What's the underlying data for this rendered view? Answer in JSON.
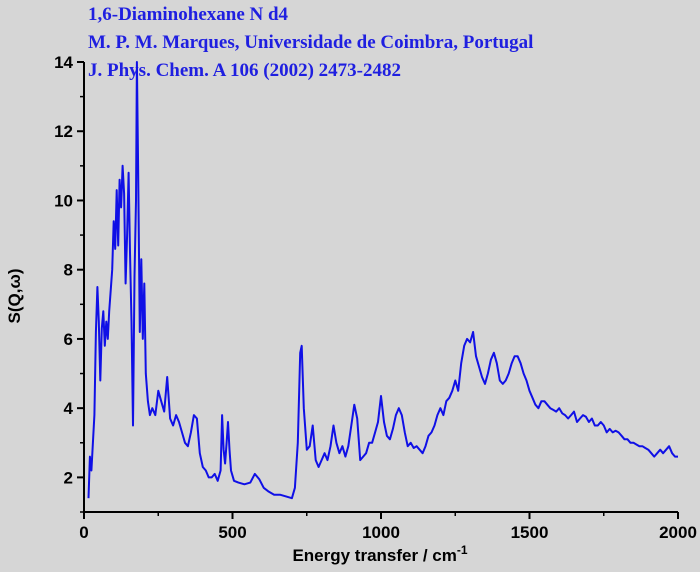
{
  "chart_data": {
    "type": "line",
    "title_lines": [
      "1,6-Diaminohexane N d4",
      "M. P. M. Marques, Universidade de Coimbra, Portugal",
      "J. Phys. Chem. A 106 (2002) 2473-2482"
    ],
    "xlabel": "Energy transfer / cm",
    "xlabel_sup": "-1",
    "ylabel": "S(Q,ω)",
    "xlim": [
      0,
      2000
    ],
    "ylim": [
      1,
      14
    ],
    "xticks": [
      0,
      500,
      1000,
      1500,
      2000
    ],
    "yticks": [
      2,
      4,
      6,
      8,
      10,
      12,
      14
    ],
    "grid": false,
    "legend": "none",
    "colors": {
      "line": "#1010e6",
      "title": "#1f1fe0",
      "background": "#d6d6d6",
      "axis": "#000000"
    },
    "series": [
      {
        "points": [
          [
            15,
            1.4
          ],
          [
            20,
            2.6
          ],
          [
            25,
            2.2
          ],
          [
            30,
            3.0
          ],
          [
            35,
            3.8
          ],
          [
            40,
            6.2
          ],
          [
            45,
            7.5
          ],
          [
            50,
            6.5
          ],
          [
            55,
            4.8
          ],
          [
            60,
            6.3
          ],
          [
            65,
            6.8
          ],
          [
            70,
            5.8
          ],
          [
            75,
            6.5
          ],
          [
            80,
            6.0
          ],
          [
            85,
            6.8
          ],
          [
            90,
            7.4
          ],
          [
            95,
            8.0
          ],
          [
            100,
            9.4
          ],
          [
            105,
            8.6
          ],
          [
            110,
            10.3
          ],
          [
            115,
            8.7
          ],
          [
            120,
            10.6
          ],
          [
            125,
            9.8
          ],
          [
            130,
            11.0
          ],
          [
            135,
            10.2
          ],
          [
            140,
            7.6
          ],
          [
            145,
            9.0
          ],
          [
            150,
            10.8
          ],
          [
            155,
            8.5
          ],
          [
            160,
            6.5
          ],
          [
            165,
            3.5
          ],
          [
            170,
            7.8
          ],
          [
            175,
            10.0
          ],
          [
            178,
            14.0
          ],
          [
            182,
            11.0
          ],
          [
            188,
            6.2
          ],
          [
            193,
            8.3
          ],
          [
            198,
            6.0
          ],
          [
            203,
            7.6
          ],
          [
            208,
            5.0
          ],
          [
            215,
            4.2
          ],
          [
            222,
            3.8
          ],
          [
            230,
            4.0
          ],
          [
            240,
            3.8
          ],
          [
            250,
            4.5
          ],
          [
            260,
            4.2
          ],
          [
            270,
            3.9
          ],
          [
            280,
            4.9
          ],
          [
            290,
            3.7
          ],
          [
            300,
            3.5
          ],
          [
            310,
            3.8
          ],
          [
            320,
            3.6
          ],
          [
            330,
            3.3
          ],
          [
            340,
            3.0
          ],
          [
            350,
            2.9
          ],
          [
            360,
            3.3
          ],
          [
            370,
            3.8
          ],
          [
            380,
            3.7
          ],
          [
            390,
            2.7
          ],
          [
            400,
            2.3
          ],
          [
            410,
            2.2
          ],
          [
            420,
            2.0
          ],
          [
            430,
            2.0
          ],
          [
            440,
            2.1
          ],
          [
            450,
            1.9
          ],
          [
            460,
            2.2
          ],
          [
            465,
            3.8
          ],
          [
            470,
            2.8
          ],
          [
            475,
            2.4
          ],
          [
            480,
            3.0
          ],
          [
            485,
            3.6
          ],
          [
            490,
            2.8
          ],
          [
            495,
            2.2
          ],
          [
            505,
            1.9
          ],
          [
            520,
            1.85
          ],
          [
            540,
            1.8
          ],
          [
            560,
            1.85
          ],
          [
            575,
            2.1
          ],
          [
            590,
            1.95
          ],
          [
            605,
            1.7
          ],
          [
            620,
            1.6
          ],
          [
            640,
            1.5
          ],
          [
            660,
            1.5
          ],
          [
            680,
            1.45
          ],
          [
            700,
            1.4
          ],
          [
            710,
            1.7
          ],
          [
            720,
            3.0
          ],
          [
            728,
            5.6
          ],
          [
            733,
            5.8
          ],
          [
            740,
            4.0
          ],
          [
            750,
            2.8
          ],
          [
            760,
            2.9
          ],
          [
            770,
            3.5
          ],
          [
            780,
            2.5
          ],
          [
            790,
            2.3
          ],
          [
            800,
            2.5
          ],
          [
            810,
            2.7
          ],
          [
            820,
            2.5
          ],
          [
            830,
            2.9
          ],
          [
            840,
            3.5
          ],
          [
            850,
            3.0
          ],
          [
            860,
            2.7
          ],
          [
            870,
            2.9
          ],
          [
            880,
            2.6
          ],
          [
            890,
            2.9
          ],
          [
            900,
            3.5
          ],
          [
            910,
            4.1
          ],
          [
            920,
            3.7
          ],
          [
            930,
            2.5
          ],
          [
            940,
            2.6
          ],
          [
            950,
            2.7
          ],
          [
            960,
            3.0
          ],
          [
            970,
            3.0
          ],
          [
            980,
            3.3
          ],
          [
            990,
            3.6
          ],
          [
            1000,
            4.35
          ],
          [
            1010,
            3.6
          ],
          [
            1020,
            3.2
          ],
          [
            1030,
            3.1
          ],
          [
            1040,
            3.4
          ],
          [
            1050,
            3.8
          ],
          [
            1060,
            4.0
          ],
          [
            1070,
            3.8
          ],
          [
            1080,
            3.3
          ],
          [
            1090,
            2.9
          ],
          [
            1100,
            3.0
          ],
          [
            1110,
            2.85
          ],
          [
            1120,
            2.9
          ],
          [
            1130,
            2.8
          ],
          [
            1140,
            2.7
          ],
          [
            1150,
            2.9
          ],
          [
            1160,
            3.2
          ],
          [
            1170,
            3.3
          ],
          [
            1180,
            3.5
          ],
          [
            1190,
            3.8
          ],
          [
            1200,
            4.0
          ],
          [
            1210,
            3.8
          ],
          [
            1220,
            4.2
          ],
          [
            1230,
            4.3
          ],
          [
            1240,
            4.5
          ],
          [
            1250,
            4.8
          ],
          [
            1260,
            4.5
          ],
          [
            1270,
            5.3
          ],
          [
            1280,
            5.8
          ],
          [
            1290,
            6.0
          ],
          [
            1300,
            5.9
          ],
          [
            1310,
            6.2
          ],
          [
            1320,
            5.5
          ],
          [
            1330,
            5.2
          ],
          [
            1340,
            4.9
          ],
          [
            1350,
            4.7
          ],
          [
            1360,
            5.0
          ],
          [
            1370,
            5.4
          ],
          [
            1380,
            5.6
          ],
          [
            1390,
            5.3
          ],
          [
            1400,
            4.8
          ],
          [
            1410,
            4.7
          ],
          [
            1420,
            4.8
          ],
          [
            1430,
            5.0
          ],
          [
            1440,
            5.3
          ],
          [
            1450,
            5.5
          ],
          [
            1460,
            5.5
          ],
          [
            1470,
            5.3
          ],
          [
            1480,
            5.0
          ],
          [
            1490,
            4.8
          ],
          [
            1500,
            4.5
          ],
          [
            1510,
            4.3
          ],
          [
            1520,
            4.1
          ],
          [
            1530,
            4.0
          ],
          [
            1540,
            4.2
          ],
          [
            1550,
            4.2
          ],
          [
            1560,
            4.1
          ],
          [
            1570,
            4.0
          ],
          [
            1580,
            3.95
          ],
          [
            1590,
            3.9
          ],
          [
            1600,
            4.0
          ],
          [
            1610,
            3.85
          ],
          [
            1620,
            3.8
          ],
          [
            1630,
            3.7
          ],
          [
            1640,
            3.8
          ],
          [
            1650,
            3.9
          ],
          [
            1660,
            3.6
          ],
          [
            1670,
            3.7
          ],
          [
            1680,
            3.8
          ],
          [
            1690,
            3.75
          ],
          [
            1700,
            3.6
          ],
          [
            1710,
            3.7
          ],
          [
            1720,
            3.5
          ],
          [
            1730,
            3.5
          ],
          [
            1740,
            3.6
          ],
          [
            1750,
            3.5
          ],
          [
            1760,
            3.3
          ],
          [
            1770,
            3.4
          ],
          [
            1780,
            3.3
          ],
          [
            1790,
            3.35
          ],
          [
            1800,
            3.3
          ],
          [
            1810,
            3.2
          ],
          [
            1820,
            3.1
          ],
          [
            1830,
            3.1
          ],
          [
            1840,
            3.0
          ],
          [
            1850,
            3.0
          ],
          [
            1860,
            2.95
          ],
          [
            1870,
            2.9
          ],
          [
            1880,
            2.9
          ],
          [
            1890,
            2.85
          ],
          [
            1900,
            2.8
          ],
          [
            1910,
            2.7
          ],
          [
            1920,
            2.6
          ],
          [
            1930,
            2.7
          ],
          [
            1940,
            2.8
          ],
          [
            1950,
            2.7
          ],
          [
            1960,
            2.8
          ],
          [
            1970,
            2.9
          ],
          [
            1980,
            2.7
          ],
          [
            1990,
            2.6
          ],
          [
            2000,
            2.6
          ]
        ]
      }
    ]
  }
}
